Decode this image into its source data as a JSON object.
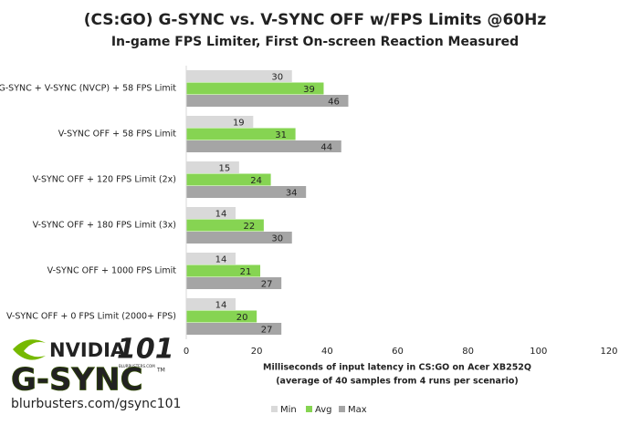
{
  "chart_data": {
    "type": "bar",
    "orientation": "horizontal",
    "title": "(CS:GO) G-SYNC vs. V-SYNC OFF w/FPS Limits @60Hz",
    "subtitle": "In-game FPS Limiter, First On-screen Reaction Measured",
    "categories": [
      "G-SYNC + V-SYNC (NVCP) + 58 FPS Limit",
      "V-SYNC OFF + 58 FPS Limit",
      "V-SYNC OFF + 120 FPS Limit (2x)",
      "V-SYNC OFF + 180 FPS Limit (3x)",
      "V-SYNC OFF + 1000 FPS Limit",
      "V-SYNC OFF + 0 FPS Limit (2000+ FPS)"
    ],
    "series": [
      {
        "name": "Min",
        "color": "#d9d9d9",
        "values": [
          30,
          19,
          15,
          14,
          14,
          14
        ]
      },
      {
        "name": "Avg",
        "color": "#86d452",
        "values": [
          39,
          31,
          24,
          22,
          21,
          20
        ]
      },
      {
        "name": "Max",
        "color": "#a5a5a5",
        "values": [
          46,
          44,
          34,
          30,
          27,
          27
        ]
      }
    ],
    "xlim": [
      0,
      120
    ],
    "xticks": [
      0,
      20,
      40,
      60,
      80,
      100,
      120
    ],
    "grid": false,
    "legend": "bottom",
    "xlabel": "Milliseconds of input latency in CS:GO on Acer XB252Q",
    "xlabel_note": "(average of 40 samples from 4 runs per scenario)"
  },
  "logo": {
    "brand": "NVIDIA",
    "badge": "101",
    "badge_caption": "BLURBUSTERS.COM",
    "product": "G-SYNC",
    "trademark": "TM",
    "url": "blurbusters.com/gsync101"
  }
}
